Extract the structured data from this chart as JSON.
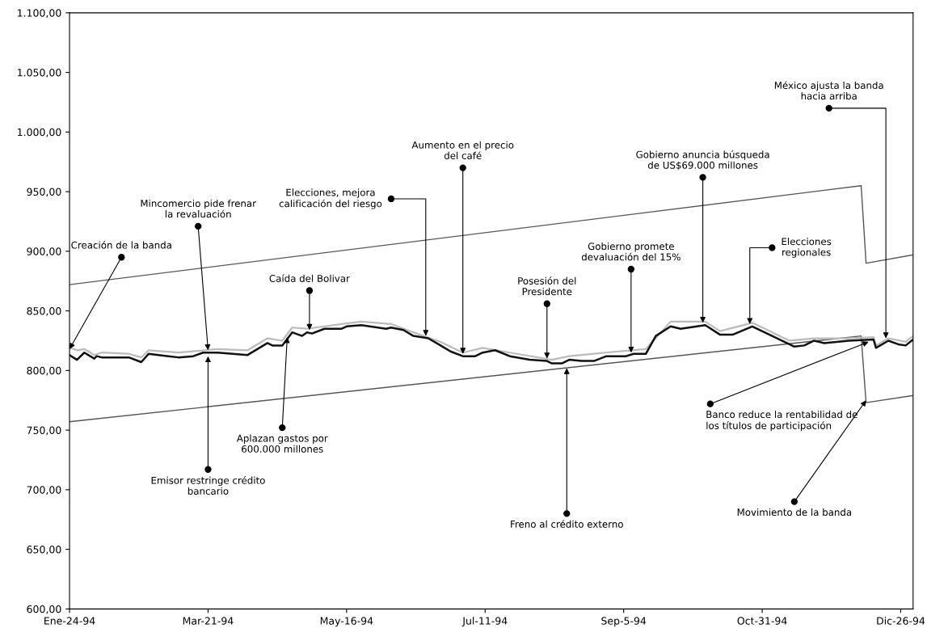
{
  "chart_data": {
    "type": "line",
    "xlim": [
      "1994-01-24",
      "1994-12-31"
    ],
    "xticks": [
      {
        "value": "1994-01-24",
        "label": "Ene-24-94"
      },
      {
        "value": "1994-03-21",
        "label": "Mar-21-94"
      },
      {
        "value": "1994-05-16",
        "label": "May-16-94"
      },
      {
        "value": "1994-07-11",
        "label": "Jul-11-94"
      },
      {
        "value": "1994-09-05",
        "label": "Sep-5-94"
      },
      {
        "value": "1994-10-31",
        "label": "Oct-31-94"
      },
      {
        "value": "1994-12-26",
        "label": "Dic-26-94"
      }
    ],
    "ylim": [
      600,
      1100
    ],
    "yticks": [
      {
        "value": 600,
        "label": "600,00"
      },
      {
        "value": 650,
        "label": "650,00"
      },
      {
        "value": 700,
        "label": "700,00"
      },
      {
        "value": 750,
        "label": "750,00"
      },
      {
        "value": 800,
        "label": "800,00"
      },
      {
        "value": 850,
        "label": "850,00"
      },
      {
        "value": 900,
        "label": "900,00"
      },
      {
        "value": 950,
        "label": "950,00"
      },
      {
        "value": 1000,
        "label": "1.000,00"
      },
      {
        "value": 1050,
        "label": "1.050,00"
      },
      {
        "value": 1100,
        "label": "1.100,00"
      }
    ],
    "grid": false,
    "legend": false,
    "marker": "none",
    "line_style": "solid",
    "series": [
      {
        "color": "#555555",
        "x": [
          "1994-01-24",
          "1994-12-10",
          "1994-12-12",
          "1994-12-31"
        ],
        "values": [
          872,
          955,
          890,
          897
        ]
      },
      {
        "color": "#555555",
        "x": [
          "1994-01-24",
          "1994-12-10",
          "1994-12-12",
          "1994-12-31"
        ],
        "values": [
          757,
          829,
          773,
          779
        ]
      },
      {
        "color": "#bbbbbb",
        "x": [
          "1994-01-24",
          "1994-01-27",
          "1994-01-30",
          "1994-02-03",
          "1994-02-06",
          "1994-02-17",
          "1994-02-22",
          "1994-02-25",
          "1994-03-09",
          "1994-03-25",
          "1994-04-06",
          "1994-04-14",
          "1994-04-20",
          "1994-04-24",
          "1994-04-30",
          "1994-05-14",
          "1994-05-22",
          "1994-06-03",
          "1994-06-12",
          "1994-06-23",
          "1994-07-02",
          "1994-07-10",
          "1994-07-21",
          "1994-08-07",
          "1994-08-14",
          "1994-08-29",
          "1994-09-14",
          "1994-09-24",
          "1994-10-08",
          "1994-10-14",
          "1994-10-27",
          "1994-11-11",
          "1994-11-21",
          "1994-12-05",
          "1994-12-15",
          "1994-12-16",
          "1994-12-21",
          "1994-12-28",
          "1994-12-31"
        ],
        "values": [
          819,
          817,
          818,
          813,
          815,
          814,
          811,
          817,
          815,
          818,
          817,
          827,
          825,
          836,
          835,
          839,
          841,
          839,
          832,
          824,
          815,
          819,
          815,
          809,
          812,
          815,
          818,
          841,
          841,
          833,
          840,
          825,
          827,
          827,
          828,
          821,
          827,
          824,
          829
        ]
      },
      {
        "color": "#111111",
        "x": [
          "1994-01-24",
          "1994-01-27",
          "1994-01-30",
          "1994-02-03",
          "1994-02-04",
          "1994-02-06",
          "1994-02-17",
          "1994-02-22",
          "1994-02-25",
          "1994-03-05",
          "1994-03-09",
          "1994-03-15",
          "1994-03-19",
          "1994-03-25",
          "1994-04-06",
          "1994-04-14",
          "1994-04-16",
          "1994-04-20",
          "1994-04-24",
          "1994-04-28",
          "1994-04-30",
          "1994-05-02",
          "1994-05-07",
          "1994-05-14",
          "1994-05-16",
          "1994-05-22",
          "1994-06-01",
          "1994-06-03",
          "1994-06-08",
          "1994-06-12",
          "1994-06-18",
          "1994-06-23",
          "1994-06-27",
          "1994-07-02",
          "1994-07-07",
          "1994-07-10",
          "1994-07-15",
          "1994-07-21",
          "1994-07-29",
          "1994-08-05",
          "1994-08-07",
          "1994-08-11",
          "1994-08-14",
          "1994-08-19",
          "1994-08-24",
          "1994-08-29",
          "1994-09-06",
          "1994-09-09",
          "1994-09-14",
          "1994-09-18",
          "1994-09-24",
          "1994-09-28",
          "1994-10-08",
          "1994-10-14",
          "1994-10-19",
          "1994-10-27",
          "1994-11-03",
          "1994-11-11",
          "1994-11-13",
          "1994-11-17",
          "1994-11-21",
          "1994-11-25",
          "1994-11-30",
          "1994-12-05",
          "1994-12-15",
          "1994-12-16",
          "1994-12-21",
          "1994-12-25",
          "1994-12-28",
          "1994-12-31"
        ],
        "values": [
          813,
          809,
          815,
          810,
          812,
          811,
          811,
          807,
          814,
          812,
          811,
          812,
          815,
          815,
          813,
          823,
          821,
          821,
          832,
          829,
          832,
          831,
          835,
          835,
          837,
          838,
          835,
          836,
          834,
          829,
          827,
          821,
          816,
          812,
          812,
          815,
          817,
          812,
          809,
          808,
          806,
          806,
          809,
          808,
          808,
          812,
          812,
          814,
          814,
          829,
          837,
          835,
          838,
          830,
          830,
          837,
          830,
          822,
          820,
          821,
          825,
          823,
          824,
          825,
          826,
          819,
          825,
          822,
          821,
          826
        ]
      }
    ],
    "annotations": [
      {
        "text": "Creación de la banda",
        "x": "1994-01-24",
        "y": 818
      },
      {
        "text": "Mincomercio pide frenar\nla revaluación",
        "x": "1994-03-21",
        "y": 817
      },
      {
        "text": "Emisor restringe crédito\nbancario",
        "x": "1994-03-21",
        "y": 812
      },
      {
        "text": "Caída del Bolivar",
        "x": "1994-05-01",
        "y": 834
      },
      {
        "text": "Aplazan gastos por\n600.000 millones",
        "x": "1994-04-22",
        "y": 828
      },
      {
        "text": "Elecciones, mejora\ncalificación del riesgo",
        "x": "1994-06-17",
        "y": 829
      },
      {
        "text": "Aumento en el precio\ndel café",
        "x": "1994-07-02",
        "y": 814
      },
      {
        "text": "Posesión del\nPresidente",
        "x": "1994-08-05",
        "y": 810
      },
      {
        "text": "Freno al crédito externo",
        "x": "1994-08-13",
        "y": 802
      },
      {
        "text": "Gobierno promete\ndevaluación del 15%",
        "x": "1994-09-08",
        "y": 815
      },
      {
        "text": "Gobierno anuncia búsqueda\nde US$69.000 millones",
        "x": "1994-10-07",
        "y": 840
      },
      {
        "text": "Elecciones\nregionales",
        "x": "1994-10-26",
        "y": 839
      },
      {
        "text": "México ajusta la banda\nhacia arriba",
        "x": "1994-12-20",
        "y": 827
      },
      {
        "text": "Banco reduce la rentabilidad de\nlos títulos de participación",
        "x": "1994-12-13",
        "y": 824
      },
      {
        "text": "Movimiento de la banda",
        "x": "1994-12-12",
        "y": 775
      }
    ]
  }
}
